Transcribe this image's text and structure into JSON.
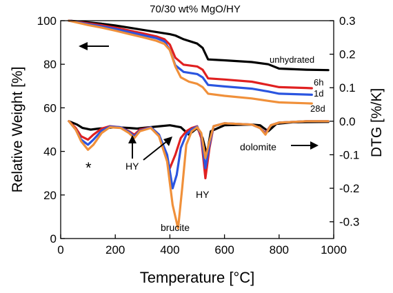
{
  "chart_data": {
    "type": "line",
    "title": "70/30 wt% MgO/HY",
    "xlabel": "Temperature [°C]",
    "ylabel": "Relative Weight [%]",
    "y2label": "DTG [%/K]",
    "xlim": [
      0,
      1000
    ],
    "ylim": [
      0,
      100
    ],
    "y2lim": [
      -0.35,
      0.3
    ],
    "x_ticks": [
      "0",
      "200",
      "400",
      "600",
      "800",
      "1000"
    ],
    "y_ticks": [
      "0",
      "20",
      "40",
      "60",
      "80",
      "100"
    ],
    "y2_ticks": [
      "-0.3",
      "-0.2",
      "-0.1",
      "0.0",
      "0.1",
      "0.2",
      "0.3"
    ],
    "grid": false,
    "tg_series": [
      {
        "name": "unhydrated",
        "color": "#000000",
        "x": [
          30,
          100,
          150,
          200,
          250,
          300,
          350,
          400,
          420,
          450,
          500,
          520,
          540,
          600,
          700,
          760,
          800,
          900,
          980
        ],
        "y": [
          100,
          99.2,
          98.6,
          97.8,
          96.8,
          95.8,
          94.8,
          93.8,
          93.2,
          91.5,
          89.5,
          87.5,
          82.2,
          81.8,
          81.0,
          80.0,
          78.0,
          77.5,
          77.3
        ]
      },
      {
        "name": "6h",
        "color": "#e02020",
        "x": [
          30,
          100,
          150,
          200,
          250,
          300,
          350,
          380,
          400,
          420,
          450,
          500,
          520,
          540,
          600,
          700,
          760,
          800,
          900,
          920
        ],
        "y": [
          100,
          98.8,
          97.9,
          96.8,
          95.5,
          94.2,
          92.8,
          91.5,
          89.0,
          83.0,
          79.8,
          79.0,
          77.5,
          73.5,
          73.0,
          72.0,
          70.5,
          69.5,
          69.1,
          69.0
        ]
      },
      {
        "name": "1d",
        "color": "#2a55e0",
        "x": [
          30,
          100,
          150,
          200,
          250,
          300,
          350,
          380,
          400,
          420,
          450,
          500,
          520,
          540,
          600,
          700,
          760,
          800,
          900,
          920
        ],
        "y": [
          100,
          98.4,
          97.4,
          96.2,
          94.8,
          93.4,
          92.0,
          90.5,
          86.5,
          79.5,
          76.5,
          75.5,
          74.0,
          70.5,
          69.8,
          68.8,
          67.5,
          66.5,
          66.1,
          66.0
        ]
      },
      {
        "name": "28d",
        "color": "#f0903a",
        "x": [
          30,
          100,
          150,
          200,
          250,
          300,
          350,
          380,
          400,
          420,
          440,
          470,
          500,
          520,
          540,
          600,
          700,
          760,
          800,
          900,
          920
        ],
        "y": [
          100,
          98.0,
          96.8,
          95.4,
          93.9,
          92.4,
          90.8,
          89.3,
          86.5,
          79.0,
          74.0,
          72.0,
          71.0,
          69.5,
          66.5,
          65.5,
          64.3,
          63.2,
          62.5,
          62.1,
          62.0
        ]
      }
    ],
    "dtg_series": [
      {
        "name": "unhydrated",
        "color": "#000000",
        "x": [
          30,
          60,
          80,
          110,
          140,
          170,
          200,
          250,
          280,
          300,
          350,
          400,
          440,
          470,
          500,
          520,
          535,
          550,
          600,
          700,
          730,
          760,
          790,
          850,
          980
        ],
        "y": [
          0.0,
          -0.01,
          -0.02,
          -0.025,
          -0.022,
          -0.02,
          -0.018,
          -0.02,
          -0.022,
          -0.02,
          -0.016,
          -0.012,
          -0.018,
          -0.04,
          -0.02,
          -0.05,
          -0.1,
          -0.03,
          -0.012,
          -0.01,
          -0.012,
          -0.03,
          -0.008,
          -0.003,
          -0.002
        ]
      },
      {
        "name": "6h",
        "color": "#e02020",
        "x": [
          30,
          55,
          75,
          100,
          120,
          150,
          180,
          220,
          250,
          270,
          290,
          330,
          360,
          380,
          400,
          420,
          440,
          460,
          480,
          500,
          515,
          530,
          545,
          560,
          600,
          700,
          730,
          750,
          770,
          800,
          900,
          980
        ],
        "y": [
          0.0,
          -0.02,
          -0.045,
          -0.055,
          -0.04,
          -0.022,
          -0.015,
          -0.018,
          -0.03,
          -0.04,
          -0.025,
          -0.018,
          -0.04,
          -0.09,
          -0.14,
          -0.1,
          -0.05,
          -0.03,
          -0.02,
          -0.015,
          -0.05,
          -0.17,
          -0.08,
          -0.015,
          -0.006,
          -0.01,
          -0.02,
          -0.035,
          -0.012,
          -0.004,
          0.0,
          0.0
        ]
      },
      {
        "name": "1d",
        "color": "#2a55e0",
        "x": [
          30,
          55,
          75,
          100,
          120,
          150,
          180,
          220,
          250,
          270,
          290,
          330,
          360,
          390,
          410,
          425,
          440,
          460,
          480,
          500,
          515,
          530,
          545,
          560,
          600,
          700,
          730,
          750,
          770,
          800,
          900,
          980
        ],
        "y": [
          0.0,
          -0.025,
          -0.055,
          -0.07,
          -0.055,
          -0.028,
          -0.016,
          -0.018,
          -0.032,
          -0.045,
          -0.028,
          -0.018,
          -0.04,
          -0.1,
          -0.2,
          -0.16,
          -0.08,
          -0.04,
          -0.024,
          -0.016,
          -0.04,
          -0.14,
          -0.07,
          -0.015,
          -0.006,
          -0.01,
          -0.02,
          -0.038,
          -0.012,
          -0.004,
          0.0,
          0.0
        ]
      },
      {
        "name": "28d",
        "color": "#f0903a",
        "x": [
          30,
          55,
          75,
          100,
          120,
          150,
          180,
          220,
          250,
          270,
          290,
          330,
          360,
          390,
          410,
          430,
          445,
          460,
          480,
          500,
          515,
          530,
          545,
          560,
          600,
          700,
          730,
          750,
          770,
          800,
          900,
          980
        ],
        "y": [
          0.0,
          -0.025,
          -0.06,
          -0.085,
          -0.07,
          -0.035,
          -0.018,
          -0.02,
          -0.035,
          -0.05,
          -0.03,
          -0.02,
          -0.045,
          -0.12,
          -0.25,
          -0.32,
          -0.2,
          -0.07,
          -0.03,
          -0.018,
          -0.035,
          -0.11,
          -0.06,
          -0.015,
          -0.006,
          -0.01,
          -0.02,
          -0.04,
          -0.012,
          -0.004,
          0.0,
          0.0
        ]
      }
    ],
    "annotations": {
      "unhydrated": "unhydrated",
      "6h": "6h",
      "1d": "1d",
      "28d": "28d",
      "dolomite": "dolomite",
      "brucite": "brucite",
      "hy1": "HY",
      "hy2": "HY",
      "star": "*"
    }
  }
}
